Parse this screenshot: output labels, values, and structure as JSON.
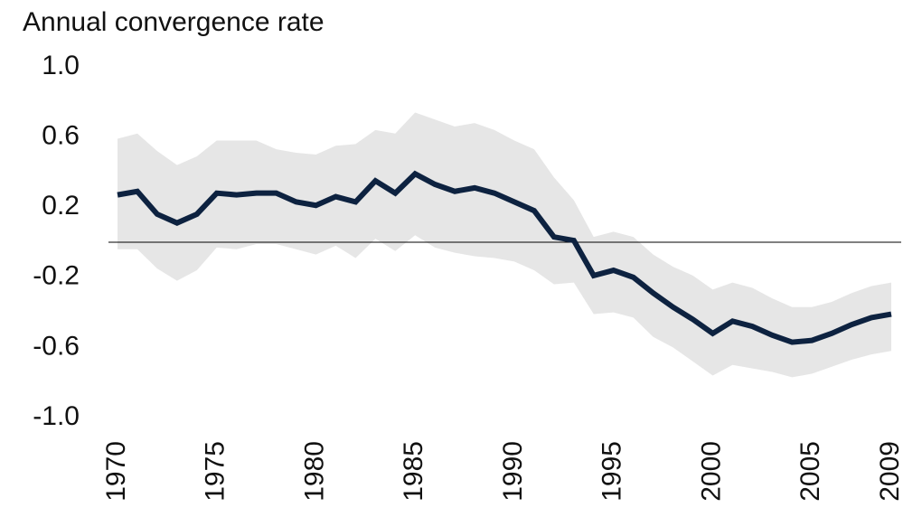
{
  "chart_data": {
    "type": "line",
    "title": "Annual convergence rate",
    "x": [
      1970,
      1971,
      1972,
      1973,
      1974,
      1975,
      1976,
      1977,
      1978,
      1979,
      1980,
      1981,
      1982,
      1983,
      1984,
      1985,
      1986,
      1987,
      1988,
      1989,
      1990,
      1991,
      1992,
      1993,
      1994,
      1995,
      1996,
      1997,
      1998,
      1999,
      2000,
      2001,
      2002,
      2003,
      2004,
      2005,
      2006,
      2007,
      2008,
      2009
    ],
    "series": [
      {
        "color": "#0d2240",
        "band_color": "#e6e6e6",
        "values": [
          0.27,
          0.29,
          0.16,
          0.11,
          0.16,
          0.28,
          0.27,
          0.28,
          0.28,
          0.23,
          0.21,
          0.26,
          0.23,
          0.35,
          0.28,
          0.39,
          0.33,
          0.29,
          0.31,
          0.28,
          0.23,
          0.18,
          0.03,
          0.01,
          -0.19,
          -0.16,
          -0.2,
          -0.29,
          -0.37,
          -0.44,
          -0.52,
          -0.45,
          -0.48,
          -0.53,
          -0.57,
          -0.56,
          -0.52,
          -0.47,
          -0.43,
          -0.41
        ],
        "upper": [
          0.59,
          0.62,
          0.52,
          0.44,
          0.49,
          0.58,
          0.58,
          0.58,
          0.53,
          0.51,
          0.5,
          0.55,
          0.56,
          0.64,
          0.62,
          0.74,
          0.7,
          0.66,
          0.68,
          0.64,
          0.58,
          0.53,
          0.37,
          0.24,
          0.03,
          0.06,
          0.03,
          -0.07,
          -0.14,
          -0.19,
          -0.27,
          -0.23,
          -0.26,
          -0.32,
          -0.37,
          -0.37,
          -0.34,
          -0.29,
          -0.25,
          -0.23
        ],
        "lower": [
          -0.04,
          -0.04,
          -0.15,
          -0.22,
          -0.16,
          -0.03,
          -0.04,
          -0.01,
          -0.01,
          -0.04,
          -0.07,
          -0.02,
          -0.09,
          0.02,
          -0.05,
          0.04,
          -0.03,
          -0.06,
          -0.08,
          -0.09,
          -0.11,
          -0.16,
          -0.24,
          -0.23,
          -0.41,
          -0.4,
          -0.43,
          -0.54,
          -0.6,
          -0.68,
          -0.76,
          -0.7,
          -0.72,
          -0.74,
          -0.77,
          -0.75,
          -0.71,
          -0.67,
          -0.64,
          -0.62
        ]
      }
    ],
    "xlim": [
      1970,
      2009
    ],
    "xticks": [
      1970,
      1975,
      1980,
      1985,
      1990,
      1995,
      2000,
      2005,
      2009
    ],
    "ylim": [
      -1,
      1
    ],
    "yticks": [
      {
        "value": 1,
        "label": "1.0"
      },
      0.6,
      0.2,
      -0.2,
      -0.6,
      {
        "value": -1,
        "label": "-1.0"
      }
    ]
  }
}
